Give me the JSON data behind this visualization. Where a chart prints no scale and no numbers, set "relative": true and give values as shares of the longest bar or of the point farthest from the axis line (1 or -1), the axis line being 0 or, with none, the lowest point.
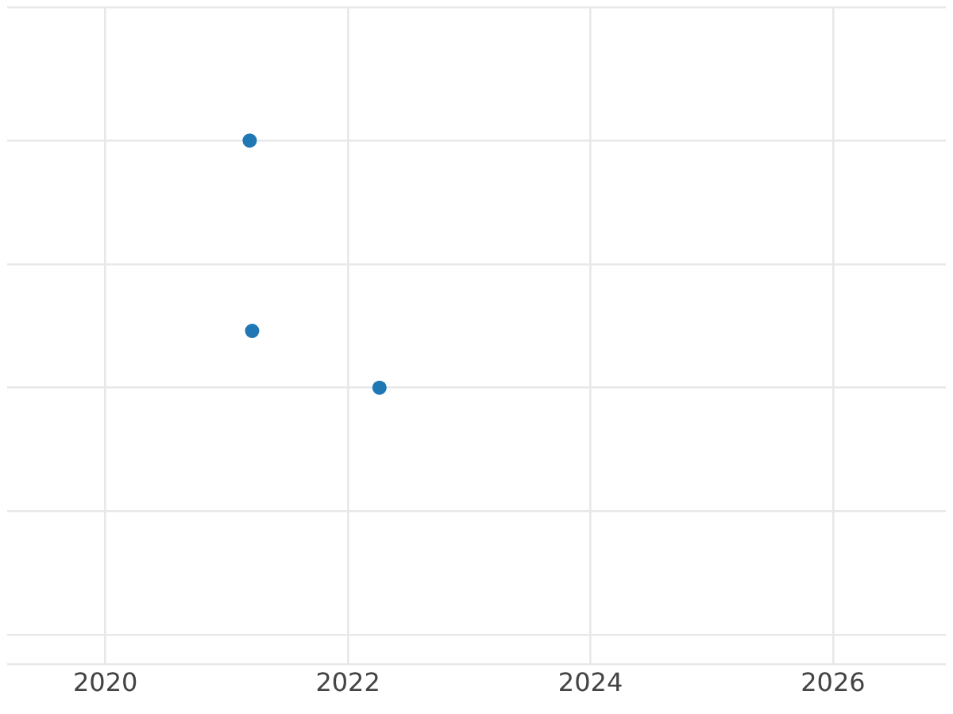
{
  "chart_data": {
    "type": "scatter",
    "relative": true,
    "x": [
      2021.19,
      2021.21,
      2022.26
    ],
    "series": [
      {
        "color": "#1f77b4",
        "values": [
          1,
          0.23,
          0
        ]
      }
    ],
    "xlim": [
      2019.19,
      2026.93
    ],
    "xticks": [
      2020,
      2022,
      2024,
      2026
    ],
    "grid": true,
    "legend": false,
    "marker": "circle"
  }
}
